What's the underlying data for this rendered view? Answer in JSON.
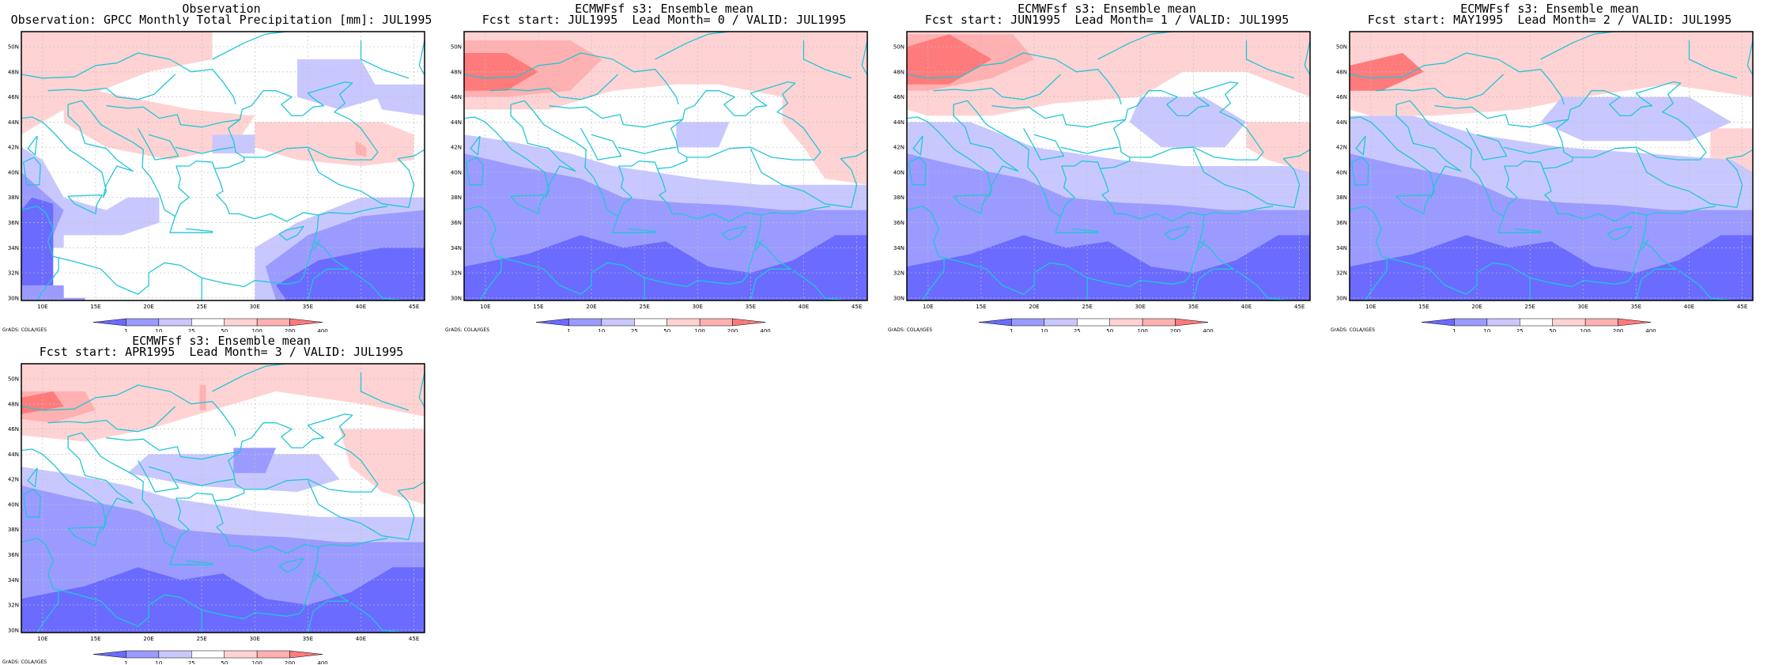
{
  "colors": {
    "c1": "#6b6bff",
    "c2": "#9b9bff",
    "c3": "#c8c8ff",
    "c4": "#ffffff",
    "c5": "#ffd3d3",
    "c6": "#ffb0b0",
    "c7": "#ff7b7b",
    "coast": "#22c6d6",
    "grid": "#c0c0c0"
  },
  "map": {
    "lon_ticks": [
      "10E",
      "15E",
      "20E",
      "25E",
      "30E",
      "35E",
      "40E",
      "45E"
    ],
    "lat_ticks": [
      "30N",
      "32N",
      "34N",
      "36N",
      "38N",
      "40N",
      "42N",
      "44N",
      "46N",
      "48N",
      "50N"
    ],
    "lon_range": [
      8,
      46
    ],
    "lat_range": [
      29.8,
      51.2
    ],
    "unit": "mm"
  },
  "colorbar": {
    "labels": [
      "1",
      "10",
      "25",
      "50",
      "100",
      "200",
      "400"
    ]
  },
  "credit": "GrADS: COLA/IGES",
  "panels": [
    {
      "id": "obs",
      "title1": "Observation",
      "title2": "Observation: GPCC Monthly Total Precipitation [mm]: JUL1995",
      "dataset": "GPCC",
      "valid": "JUL1995"
    },
    {
      "id": "lead0",
      "title1": "ECMWFsf s3: Ensemble mean",
      "title2": "Fcst start: JUL1995  Lead Month= 0 / VALID: JUL1995",
      "fcst_start": "JUL1995",
      "lead_month": 0,
      "valid": "JUL1995"
    },
    {
      "id": "lead1",
      "title1": "ECMWFsf s3: Ensemble mean",
      "title2": "Fcst start: JUN1995  Lead Month= 1 / VALID: JUL1995",
      "fcst_start": "JUN1995",
      "lead_month": 1,
      "valid": "JUL1995"
    },
    {
      "id": "lead2",
      "title1": "ECMWFsf s3: Ensemble mean",
      "title2": "Fcst start: MAY1995  Lead Month= 2 / VALID: JUL1995",
      "fcst_start": "MAY1995",
      "lead_month": 2,
      "valid": "JUL1995"
    },
    {
      "id": "lead3",
      "title1": "ECMWFsf s3: Ensemble mean",
      "title2": "Fcst start: APR1995  Lead Month= 3 / VALID: JUL1995",
      "fcst_start": "APR1995",
      "lead_month": 3,
      "valid": "JUL1995"
    }
  ]
}
